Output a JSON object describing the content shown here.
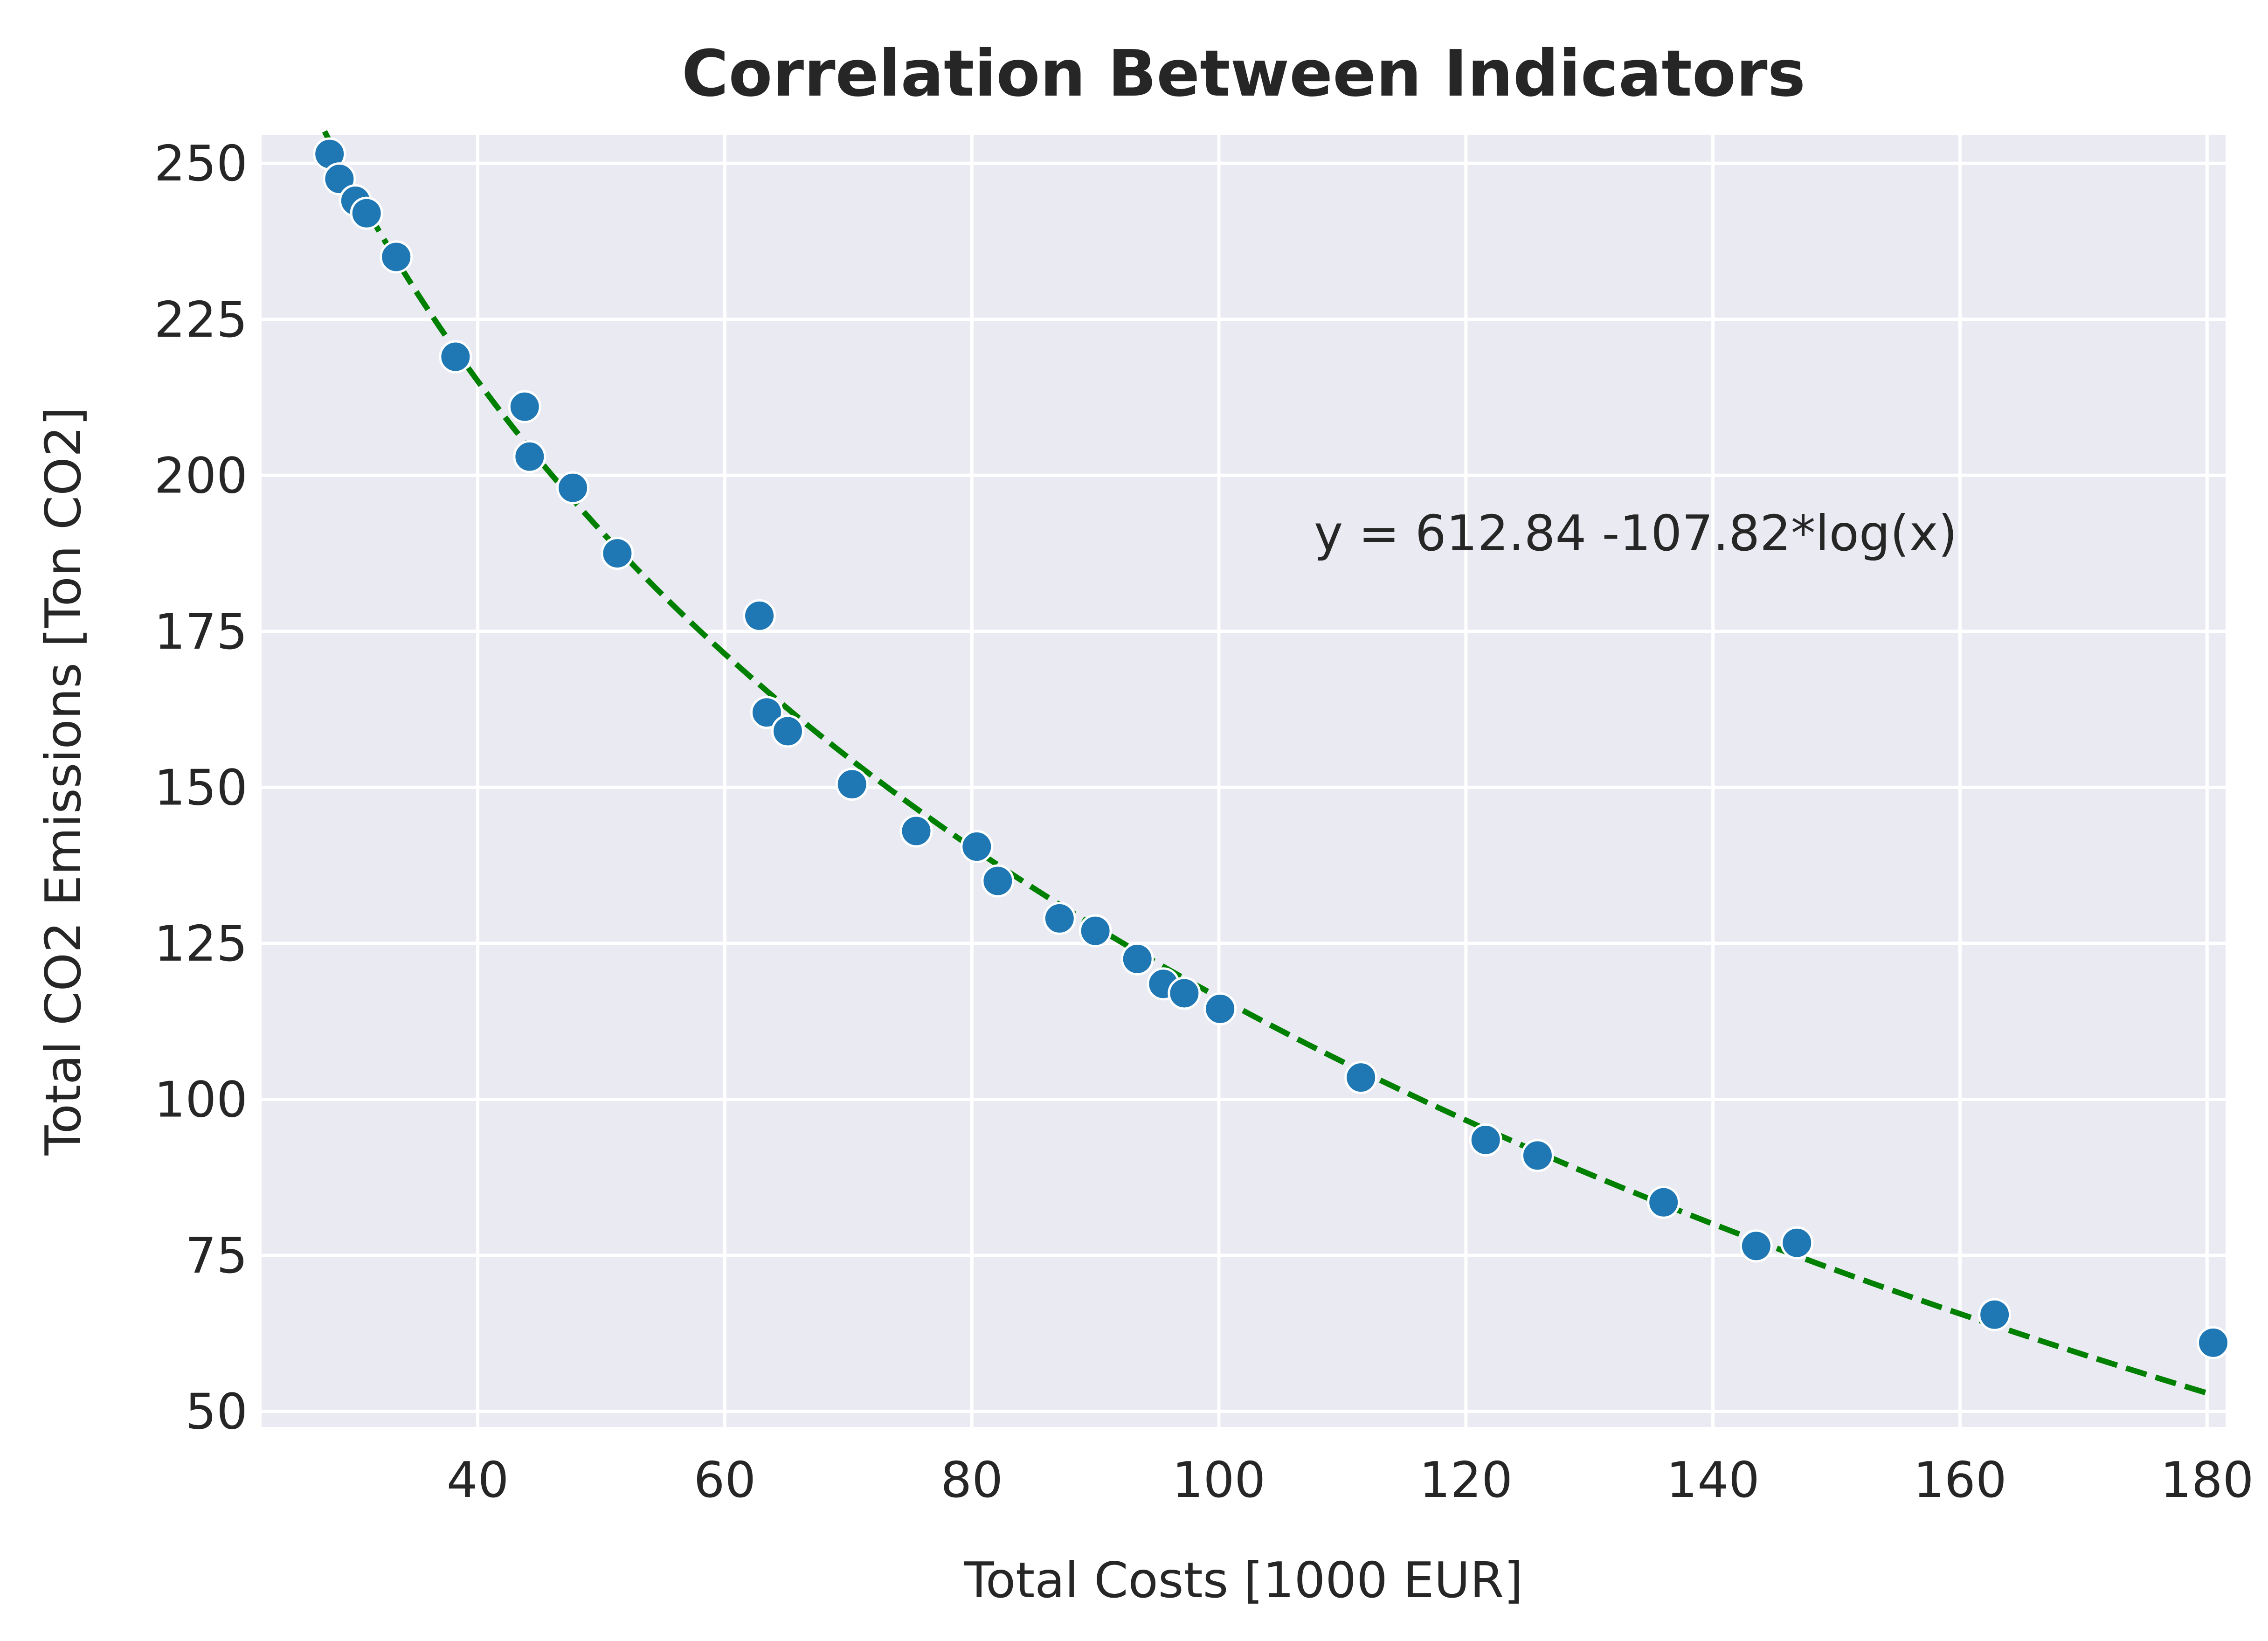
{
  "chart_data": {
    "type": "scatter",
    "title": "Correlation Between Indicators",
    "xlabel": "Total Costs [1000 EUR]",
    "ylabel": "Total CO2 Emissions [Ton CO2]",
    "xlim": [
      22.5,
      181.5
    ],
    "ylim": [
      47.5,
      254.5
    ],
    "xticks": [
      40,
      60,
      80,
      100,
      120,
      140,
      160,
      180
    ],
    "yticks": [
      50,
      75,
      100,
      125,
      150,
      175,
      200,
      225,
      250
    ],
    "grid": true,
    "points": [
      {
        "x": 28.0,
        "y": 251.5
      },
      {
        "x": 28.8,
        "y": 247.5
      },
      {
        "x": 30.1,
        "y": 244.0
      },
      {
        "x": 31.0,
        "y": 242.0
      },
      {
        "x": 33.4,
        "y": 235.0
      },
      {
        "x": 38.2,
        "y": 219.0
      },
      {
        "x": 43.8,
        "y": 211.0
      },
      {
        "x": 44.2,
        "y": 203.0
      },
      {
        "x": 47.7,
        "y": 198.0
      },
      {
        "x": 51.3,
        "y": 187.5
      },
      {
        "x": 62.8,
        "y": 177.5
      },
      {
        "x": 63.4,
        "y": 162.0
      },
      {
        "x": 65.1,
        "y": 159.0
      },
      {
        "x": 70.3,
        "y": 150.5
      },
      {
        "x": 75.5,
        "y": 143.0
      },
      {
        "x": 80.4,
        "y": 140.5
      },
      {
        "x": 82.1,
        "y": 135.0
      },
      {
        "x": 87.1,
        "y": 129.0
      },
      {
        "x": 90.0,
        "y": 127.0
      },
      {
        "x": 93.4,
        "y": 122.5
      },
      {
        "x": 95.5,
        "y": 118.5
      },
      {
        "x": 97.2,
        "y": 117.0
      },
      {
        "x": 100.1,
        "y": 114.5
      },
      {
        "x": 111.5,
        "y": 103.5
      },
      {
        "x": 121.6,
        "y": 93.5
      },
      {
        "x": 125.8,
        "y": 91.0
      },
      {
        "x": 136.0,
        "y": 83.5
      },
      {
        "x": 143.5,
        "y": 76.5
      },
      {
        "x": 146.8,
        "y": 77.0
      },
      {
        "x": 162.8,
        "y": 65.5
      },
      {
        "x": 180.5,
        "y": 61.0
      }
    ],
    "fit": {
      "label": "y = 612.84 -107.82*log(x)",
      "intercept": 612.84,
      "slope": -107.82,
      "x_range": [
        27.6,
        180.5
      ],
      "color": "#008000",
      "style": "dashed"
    },
    "point_color": "#1f77b4",
    "background_color": "#eaeaf2"
  }
}
